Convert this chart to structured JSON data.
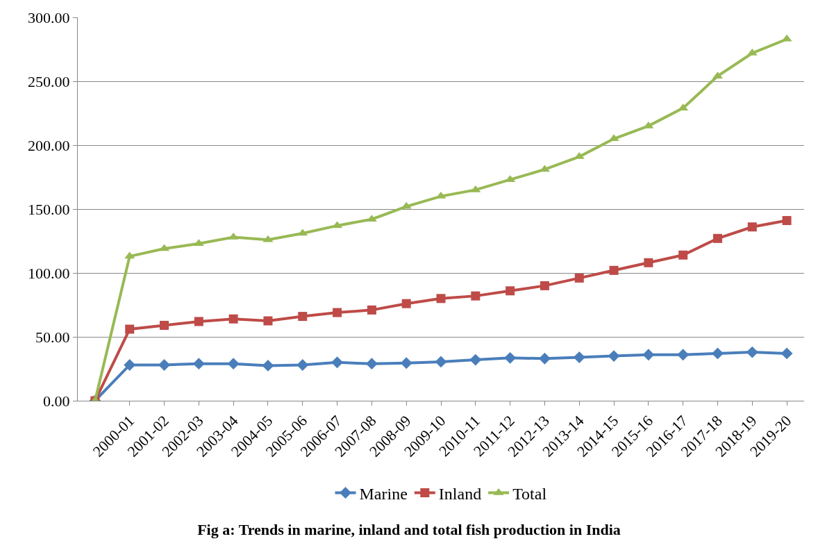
{
  "chart_data": {
    "type": "line",
    "title": "Fig a: Trends in marine, inland and total fish production in India",
    "categories": [
      null,
      "2000-01",
      "2001-02",
      "2002-03",
      "2003-04",
      "2004-05",
      "2005-06",
      "2006-07",
      "2007-08",
      "2008-09",
      "2009-10",
      "2010-11",
      "2011-12",
      "2012-13",
      "2013-14",
      "2014-15",
      "2015-16",
      "2016-17",
      "2017-18",
      "2018-19",
      "2019-20"
    ],
    "series": [
      {
        "name": "Marine",
        "color": "#4a7ebb",
        "marker": "diamond",
        "values": [
          0,
          28,
          28,
          29,
          29,
          27.5,
          28,
          30,
          29,
          29.5,
          30.5,
          32,
          33.5,
          33,
          34,
          35,
          36,
          36,
          37,
          38,
          37
        ]
      },
      {
        "name": "Inland",
        "color": "#be4b48",
        "marker": "square",
        "values": [
          0,
          56,
          59,
          62,
          64,
          62.5,
          66,
          69,
          71,
          76,
          80,
          82,
          86,
          90,
          96,
          102,
          108,
          114,
          127,
          136,
          141
        ]
      },
      {
        "name": "Total",
        "color": "#98b954",
        "marker": "triangle",
        "values": [
          0,
          113,
          119,
          123,
          128,
          126,
          131,
          137,
          142,
          152,
          160,
          165,
          173,
          181,
          191,
          205,
          215,
          229,
          254,
          272,
          283
        ]
      }
    ],
    "ylim": [
      0,
      300
    ],
    "yticks": [
      {
        "value": 0,
        "label": "0.00"
      },
      {
        "value": 50,
        "label": "50.00"
      },
      {
        "value": 100,
        "label": "100.00"
      },
      {
        "value": 150,
        "label": "150.00"
      },
      {
        "value": 200,
        "label": "200.00"
      },
      {
        "value": 250,
        "label": "250.00"
      },
      {
        "value": 300,
        "label": "300.00"
      }
    ],
    "grid": "y",
    "legend": "bottom",
    "line_style": "solid"
  }
}
